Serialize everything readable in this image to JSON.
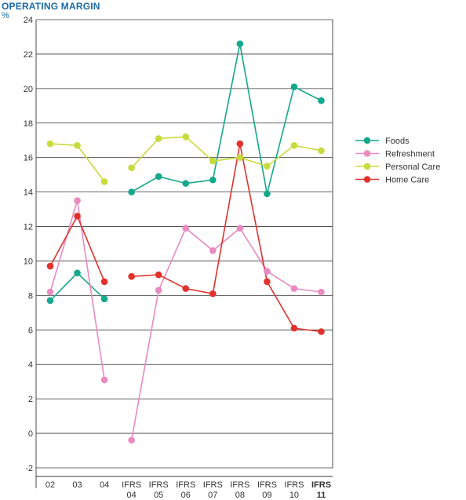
{
  "chart_data": {
    "type": "line",
    "title": "OPERATING MARGIN",
    "ylabel": "%",
    "xlabel": "",
    "ylim": [
      -2,
      24
    ],
    "yticks": [
      -2,
      0,
      2,
      4,
      6,
      8,
      10,
      12,
      14,
      16,
      18,
      20,
      22,
      24
    ],
    "grid": true,
    "legend_position": "right",
    "categories": [
      [
        "02"
      ],
      [
        "03"
      ],
      [
        "04"
      ],
      [
        "IFRS",
        "04"
      ],
      [
        "IFRS",
        "05"
      ],
      [
        "IFRS",
        "06"
      ],
      [
        "IFRS",
        "07"
      ],
      [
        "IFRS",
        "08"
      ],
      [
        "IFRS",
        "09"
      ],
      [
        "IFRS",
        "10"
      ],
      [
        "IFRS",
        "11"
      ]
    ],
    "highlight_category_index": 10,
    "highlight_color": "#1a6aa8",
    "segments": [
      [
        0,
        2
      ],
      [
        3,
        10
      ]
    ],
    "series": [
      {
        "name": "Foods",
        "color": "#14a88c",
        "values": [
          7.7,
          9.3,
          7.8,
          14.0,
          14.9,
          14.5,
          14.7,
          22.6,
          13.9,
          20.1,
          19.3
        ]
      },
      {
        "name": "Refreshment",
        "color": "#ea8ac1",
        "values": [
          8.2,
          13.5,
          3.1,
          -0.4,
          8.3,
          11.9,
          10.6,
          11.9,
          9.4,
          8.4,
          8.2
        ]
      },
      {
        "name": "Personal Care",
        "color": "#c7dc3c",
        "values": [
          16.8,
          16.7,
          14.6,
          15.4,
          17.1,
          17.2,
          15.8,
          16.0,
          15.5,
          16.7,
          16.4
        ]
      },
      {
        "name": "Home Care",
        "color": "#e1322d",
        "values": [
          9.7,
          12.6,
          8.8,
          9.1,
          9.2,
          8.4,
          8.1,
          16.8,
          8.8,
          6.1,
          5.9
        ]
      }
    ]
  }
}
